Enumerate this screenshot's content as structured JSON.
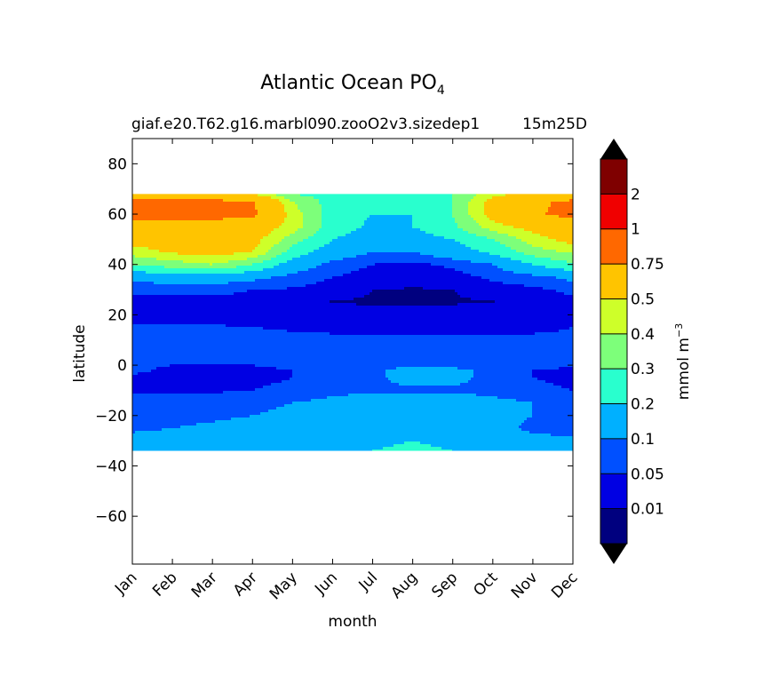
{
  "chart_data": {
    "type": "heatmap",
    "title_main": "Atlantic Ocean PO",
    "title_sub": "4",
    "subtitle_left": "giaf.e20.T62.g16.marbl090.zooO2v3.sizedep1",
    "subtitle_right": "15m25D",
    "xlabel": "month",
    "ylabel": "latitude",
    "x_ticks": [
      "Jan",
      "Feb",
      "Mar",
      "Apr",
      "May",
      "Jun",
      "Jul",
      "Aug",
      "Sep",
      "Oct",
      "Nov",
      "Dec"
    ],
    "y_ticks": [
      80,
      60,
      40,
      20,
      0,
      -20,
      -40,
      -60
    ],
    "ylim": [
      -79,
      90
    ],
    "data_lat_range": [
      -34,
      68
    ],
    "colorbar": {
      "label": "mmol m",
      "label_sup": "−3",
      "levels": [
        0.01,
        0.05,
        0.1,
        0.2,
        0.3,
        0.4,
        0.5,
        0.75,
        1,
        2
      ],
      "colors": [
        "#00007f",
        "#0000e3",
        "#0050ff",
        "#00b0ff",
        "#29ffce",
        "#7dff7a",
        "#ceff29",
        "#ffc400",
        "#ff6800",
        "#f00000",
        "#7f0000"
      ],
      "extend": "both"
    },
    "field": {
      "lats": [
        68,
        65,
        60,
        55,
        50,
        45,
        40,
        35,
        30,
        25,
        20,
        15,
        10,
        5,
        2,
        0,
        -2,
        -5,
        -10,
        -15,
        -20,
        -25,
        -30,
        -34
      ],
      "rows": [
        [
          0.55,
          0.55,
          0.55,
          0.5,
          0.3,
          0.25,
          0.25,
          0.25,
          0.3,
          0.45,
          0.55,
          0.55
        ],
        [
          0.8,
          0.8,
          0.8,
          0.76,
          0.4,
          0.25,
          0.22,
          0.22,
          0.3,
          0.55,
          0.7,
          0.8
        ],
        [
          0.85,
          0.85,
          0.85,
          0.8,
          0.45,
          0.25,
          0.2,
          0.2,
          0.3,
          0.55,
          0.72,
          0.82
        ],
        [
          0.6,
          0.6,
          0.62,
          0.6,
          0.45,
          0.25,
          0.18,
          0.2,
          0.28,
          0.45,
          0.55,
          0.6
        ],
        [
          0.55,
          0.55,
          0.55,
          0.55,
          0.35,
          0.2,
          0.15,
          0.15,
          0.2,
          0.3,
          0.45,
          0.55
        ],
        [
          0.45,
          0.52,
          0.55,
          0.5,
          0.25,
          0.15,
          0.1,
          0.1,
          0.15,
          0.22,
          0.35,
          0.42
        ],
        [
          0.3,
          0.35,
          0.4,
          0.3,
          0.15,
          0.08,
          0.05,
          0.04,
          0.06,
          0.1,
          0.2,
          0.28
        ],
        [
          0.12,
          0.15,
          0.15,
          0.12,
          0.08,
          0.05,
          0.03,
          0.02,
          0.03,
          0.06,
          0.08,
          0.12
        ],
        [
          0.06,
          0.06,
          0.06,
          0.05,
          0.045,
          0.03,
          0.01,
          0.008,
          0.01,
          0.03,
          0.04,
          0.06
        ],
        [
          0.04,
          0.04,
          0.04,
          0.04,
          0.02,
          0.008,
          0.005,
          0.005,
          0.006,
          0.008,
          0.03,
          0.04
        ],
        [
          0.03,
          0.03,
          0.03,
          0.03,
          0.03,
          0.03,
          0.03,
          0.03,
          0.03,
          0.03,
          0.03,
          0.03
        ],
        [
          0.055,
          0.055,
          0.055,
          0.05,
          0.045,
          0.04,
          0.04,
          0.04,
          0.04,
          0.04,
          0.04,
          0.05
        ],
        [
          0.06,
          0.07,
          0.07,
          0.07,
          0.06,
          0.06,
          0.06,
          0.06,
          0.06,
          0.06,
          0.06,
          0.06
        ],
        [
          0.055,
          0.06,
          0.06,
          0.06,
          0.06,
          0.06,
          0.06,
          0.06,
          0.06,
          0.06,
          0.06,
          0.055
        ],
        [
          0.07,
          0.07,
          0.07,
          0.07,
          0.07,
          0.06,
          0.06,
          0.06,
          0.06,
          0.06,
          0.06,
          0.06
        ],
        [
          0.06,
          0.05,
          0.05,
          0.05,
          0.06,
          0.08,
          0.09,
          0.09,
          0.08,
          0.07,
          0.06,
          0.06
        ],
        [
          0.06,
          0.04,
          0.04,
          0.04,
          0.05,
          0.07,
          0.09,
          0.12,
          0.12,
          0.08,
          0.05,
          0.04
        ],
        [
          0.04,
          0.04,
          0.04,
          0.04,
          0.05,
          0.06,
          0.09,
          0.12,
          0.12,
          0.08,
          0.05,
          0.04
        ],
        [
          0.045,
          0.045,
          0.045,
          0.05,
          0.06,
          0.08,
          0.09,
          0.09,
          0.09,
          0.08,
          0.06,
          0.05
        ],
        [
          0.06,
          0.065,
          0.07,
          0.08,
          0.1,
          0.12,
          0.14,
          0.15,
          0.14,
          0.12,
          0.1,
          0.08
        ],
        [
          0.07,
          0.08,
          0.09,
          0.1,
          0.12,
          0.14,
          0.16,
          0.18,
          0.16,
          0.13,
          0.1,
          0.08
        ],
        [
          0.09,
          0.1,
          0.11,
          0.12,
          0.13,
          0.14,
          0.15,
          0.16,
          0.15,
          0.13,
          0.08,
          0.06
        ],
        [
          0.12,
          0.12,
          0.12,
          0.14,
          0.15,
          0.17,
          0.19,
          0.2,
          0.19,
          0.16,
          0.13,
          0.12
        ],
        [
          0.14,
          0.14,
          0.14,
          0.15,
          0.17,
          0.19,
          0.2,
          0.21,
          0.2,
          0.18,
          0.15,
          0.14
        ]
      ]
    }
  }
}
